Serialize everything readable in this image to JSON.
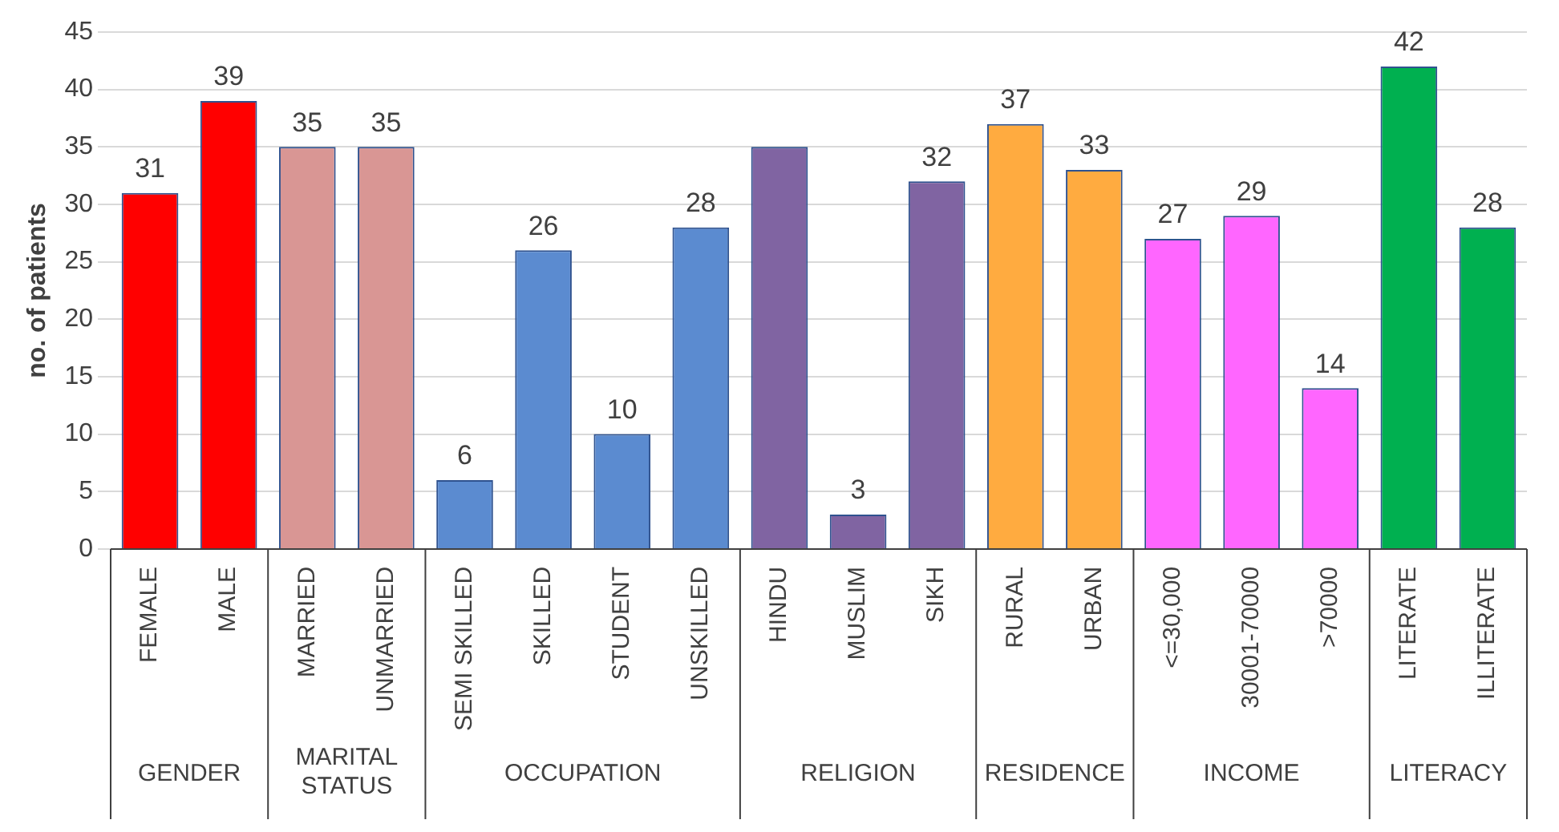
{
  "chart_data": {
    "type": "bar",
    "ylabel": "no. of patients",
    "categories": [
      "FEMALE",
      "MALE",
      "MARRIED",
      "UNMARRIED",
      "SEMI SKILLED",
      "SKILLED",
      "STUDENT",
      "UNSKILLED",
      "HINDU",
      "MUSLIM",
      "SIKH",
      "RURAL",
      "URBAN",
      "<=30,000",
      "30001-70000",
      ">70000",
      "LITERATE",
      "ILLITERATE"
    ],
    "values": [
      31,
      39,
      35,
      35,
      6,
      26,
      10,
      28,
      35,
      3,
      32,
      37,
      33,
      27,
      29,
      14,
      42,
      28
    ],
    "value_labels": [
      "31",
      "39",
      "35",
      "35",
      "6",
      "26",
      "10",
      "28",
      null,
      "3",
      "32",
      "37",
      "33",
      "27",
      "29",
      "14",
      "42",
      "28"
    ],
    "colors": [
      "#ff0000",
      "#ff0000",
      "#d99694",
      "#d99694",
      "#5b8bd0",
      "#5b8bd0",
      "#5b8bd0",
      "#5b8bd0",
      "#8064a2",
      "#8064a2",
      "#8064a2",
      "#ffab40",
      "#ffab40",
      "#ff66ff",
      "#ff66ff",
      "#ff66ff",
      "#00b050",
      "#00b050"
    ],
    "ylim": [
      0,
      45
    ],
    "yticks": [
      0,
      5,
      10,
      15,
      20,
      25,
      30,
      35,
      40,
      45
    ],
    "grid": "y",
    "legend": false,
    "annotations": [
      "GENDER",
      "MARITAL STATUS",
      "OCCUPATION",
      "RELIGION",
      "RESIDENCE",
      "INCOME",
      "LITERACY"
    ]
  }
}
